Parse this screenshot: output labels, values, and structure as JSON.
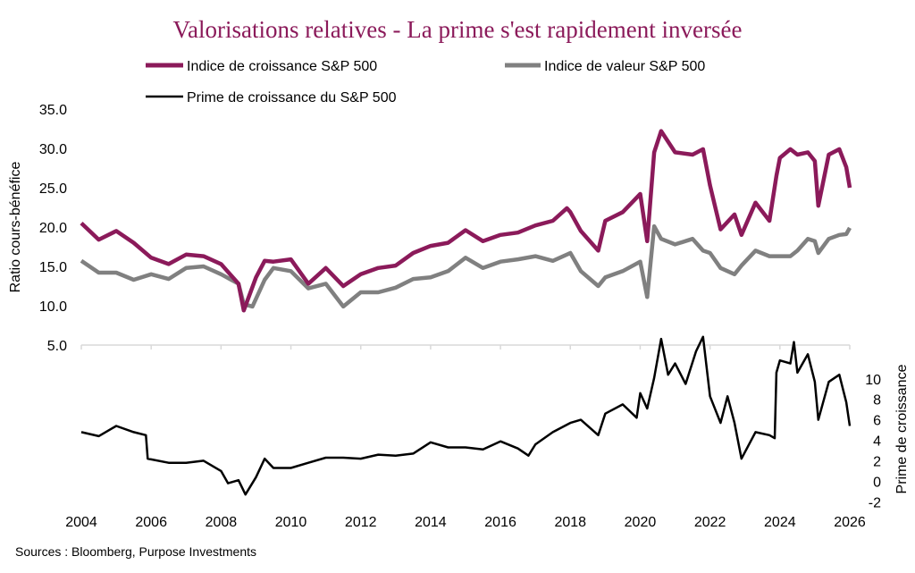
{
  "chart_data": {
    "type": "line",
    "title": "Valorisations relatives - La prime s'est rapidement inversée",
    "ylabel": "Ratio cours-bénéfice",
    "y2label": "Prime de croissance",
    "source": "Sources : Bloomberg, Purpose Investments",
    "xlim": [
      2004,
      2026
    ],
    "ylim": [
      5,
      35
    ],
    "y2lim": [
      -3.2,
      13.3
    ],
    "x_ticks": [
      "2004",
      "2006",
      "2008",
      "2010",
      "2012",
      "2014",
      "2016",
      "2018",
      "2020",
      "2022",
      "2024",
      "2026"
    ],
    "y_ticks": [
      "5.0",
      "10.0",
      "15.0",
      "20.0",
      "25.0",
      "30.0",
      "35.0"
    ],
    "y2_ticks": [
      "-2",
      "0",
      "2",
      "4",
      "6",
      "8",
      "10"
    ],
    "legend_placement": "top",
    "grid": false,
    "series": [
      {
        "name": "Indice de croissance S&P 500",
        "axis": "left",
        "color": "#8b1a5a",
        "points": [
          [
            2004,
            20.5
          ],
          [
            2004.5,
            18.4
          ],
          [
            2005,
            19.5
          ],
          [
            2005.5,
            18.0
          ],
          [
            2006,
            16.1
          ],
          [
            2006.5,
            15.3
          ],
          [
            2007,
            16.5
          ],
          [
            2007.5,
            16.3
          ],
          [
            2008,
            15.3
          ],
          [
            2008.5,
            12.8
          ],
          [
            2008.65,
            9.4
          ],
          [
            2009,
            13.6
          ],
          [
            2009.25,
            15.7
          ],
          [
            2009.5,
            15.6
          ],
          [
            2010,
            15.9
          ],
          [
            2010.5,
            12.8
          ],
          [
            2011,
            14.8
          ],
          [
            2011.5,
            12.5
          ],
          [
            2012,
            14.0
          ],
          [
            2012.5,
            14.8
          ],
          [
            2013,
            15.1
          ],
          [
            2013.5,
            16.7
          ],
          [
            2014,
            17.6
          ],
          [
            2014.5,
            18.0
          ],
          [
            2015,
            19.6
          ],
          [
            2015.5,
            18.2
          ],
          [
            2016,
            19.0
          ],
          [
            2016.5,
            19.3
          ],
          [
            2017,
            20.2
          ],
          [
            2017.5,
            20.8
          ],
          [
            2017.9,
            22.4
          ],
          [
            2018,
            21.9
          ],
          [
            2018.3,
            19.5
          ],
          [
            2018.8,
            17.0
          ],
          [
            2019,
            20.8
          ],
          [
            2019.5,
            21.9
          ],
          [
            2020,
            24.2
          ],
          [
            2020.2,
            18.2
          ],
          [
            2020.4,
            29.5
          ],
          [
            2020.6,
            32.2
          ],
          [
            2021,
            29.5
          ],
          [
            2021.5,
            29.2
          ],
          [
            2021.8,
            29.9
          ],
          [
            2022,
            25.3
          ],
          [
            2022.3,
            19.7
          ],
          [
            2022.7,
            21.6
          ],
          [
            2022.9,
            19.0
          ],
          [
            2023.3,
            23.1
          ],
          [
            2023.7,
            20.8
          ],
          [
            2023.9,
            26.5
          ],
          [
            2024,
            28.8
          ],
          [
            2024.3,
            29.9
          ],
          [
            2024.5,
            29.2
          ],
          [
            2024.8,
            29.5
          ],
          [
            2025,
            28.4
          ],
          [
            2025.1,
            22.7
          ],
          [
            2025.4,
            29.2
          ],
          [
            2025.7,
            29.9
          ],
          [
            2025.9,
            27.6
          ],
          [
            2026,
            25.0
          ]
        ]
      },
      {
        "name": "Indice de valeur S&P 500",
        "axis": "left",
        "color": "#808080",
        "points": [
          [
            2004,
            15.7
          ],
          [
            2004.5,
            14.2
          ],
          [
            2005,
            14.2
          ],
          [
            2005.5,
            13.3
          ],
          [
            2006,
            14.0
          ],
          [
            2006.5,
            13.4
          ],
          [
            2007,
            14.8
          ],
          [
            2007.5,
            15.0
          ],
          [
            2008,
            14.0
          ],
          [
            2008.5,
            12.8
          ],
          [
            2008.65,
            10.2
          ],
          [
            2008.9,
            9.9
          ],
          [
            2009.25,
            13.3
          ],
          [
            2009.5,
            14.8
          ],
          [
            2010,
            14.4
          ],
          [
            2010.5,
            12.2
          ],
          [
            2011,
            12.8
          ],
          [
            2011.5,
            9.9
          ],
          [
            2012,
            11.7
          ],
          [
            2012.5,
            11.7
          ],
          [
            2013,
            12.3
          ],
          [
            2013.5,
            13.4
          ],
          [
            2014,
            13.6
          ],
          [
            2014.5,
            14.4
          ],
          [
            2015,
            16.1
          ],
          [
            2015.5,
            14.8
          ],
          [
            2016,
            15.6
          ],
          [
            2016.5,
            15.9
          ],
          [
            2017,
            16.3
          ],
          [
            2017.5,
            15.7
          ],
          [
            2018,
            16.7
          ],
          [
            2018.3,
            14.4
          ],
          [
            2018.8,
            12.5
          ],
          [
            2019,
            13.6
          ],
          [
            2019.5,
            14.4
          ],
          [
            2020,
            15.6
          ],
          [
            2020.2,
            11.1
          ],
          [
            2020.4,
            20.1
          ],
          [
            2020.6,
            18.5
          ],
          [
            2021,
            17.8
          ],
          [
            2021.5,
            18.5
          ],
          [
            2021.8,
            17.0
          ],
          [
            2022,
            16.7
          ],
          [
            2022.3,
            14.8
          ],
          [
            2022.7,
            14.0
          ],
          [
            2022.9,
            15.1
          ],
          [
            2023.3,
            17.0
          ],
          [
            2023.7,
            16.3
          ],
          [
            2023.9,
            16.3
          ],
          [
            2024,
            16.3
          ],
          [
            2024.3,
            16.3
          ],
          [
            2024.5,
            17.0
          ],
          [
            2024.8,
            18.5
          ],
          [
            2025,
            18.2
          ],
          [
            2025.1,
            16.7
          ],
          [
            2025.4,
            18.5
          ],
          [
            2025.7,
            19.0
          ],
          [
            2025.9,
            19.1
          ],
          [
            2026,
            19.9
          ]
        ]
      },
      {
        "name": "Prime de croissance du S&P 500",
        "axis": "right",
        "color": "#000000",
        "points": [
          [
            2004,
            4.8
          ],
          [
            2004.5,
            4.4
          ],
          [
            2005,
            5.4
          ],
          [
            2005.5,
            4.8
          ],
          [
            2005.85,
            4.5
          ],
          [
            2005.9,
            2.2
          ],
          [
            2006.5,
            1.8
          ],
          [
            2007,
            1.8
          ],
          [
            2007.5,
            2.0
          ],
          [
            2008,
            1.0
          ],
          [
            2008.2,
            -0.2
          ],
          [
            2008.5,
            0.1
          ],
          [
            2008.7,
            -1.3
          ],
          [
            2009,
            0.4
          ],
          [
            2009.25,
            2.2
          ],
          [
            2009.5,
            1.3
          ],
          [
            2010,
            1.3
          ],
          [
            2010.5,
            1.8
          ],
          [
            2011,
            2.3
          ],
          [
            2011.5,
            2.3
          ],
          [
            2012,
            2.2
          ],
          [
            2012.5,
            2.6
          ],
          [
            2013,
            2.5
          ],
          [
            2013.5,
            2.7
          ],
          [
            2014,
            3.8
          ],
          [
            2014.5,
            3.3
          ],
          [
            2015,
            3.3
          ],
          [
            2015.5,
            3.1
          ],
          [
            2016,
            3.9
          ],
          [
            2016.5,
            3.2
          ],
          [
            2016.8,
            2.5
          ],
          [
            2017,
            3.6
          ],
          [
            2017.5,
            4.8
          ],
          [
            2018,
            5.7
          ],
          [
            2018.3,
            6.0
          ],
          [
            2018.8,
            4.5
          ],
          [
            2019,
            6.6
          ],
          [
            2019.5,
            7.5
          ],
          [
            2019.9,
            6.2
          ],
          [
            2020,
            8.6
          ],
          [
            2020.2,
            7.1
          ],
          [
            2020.4,
            10.1
          ],
          [
            2020.6,
            13.9
          ],
          [
            2020.8,
            10.4
          ],
          [
            2021,
            11.5
          ],
          [
            2021.3,
            9.5
          ],
          [
            2021.6,
            12.7
          ],
          [
            2021.8,
            14.1
          ],
          [
            2022,
            8.3
          ],
          [
            2022.3,
            5.7
          ],
          [
            2022.5,
            8.3
          ],
          [
            2022.7,
            5.7
          ],
          [
            2022.9,
            2.2
          ],
          [
            2023.3,
            4.8
          ],
          [
            2023.7,
            4.5
          ],
          [
            2023.85,
            4.2
          ],
          [
            2023.9,
            10.6
          ],
          [
            2024,
            11.8
          ],
          [
            2024.3,
            11.5
          ],
          [
            2024.4,
            13.6
          ],
          [
            2024.5,
            10.6
          ],
          [
            2024.8,
            12.4
          ],
          [
            2025,
            9.7
          ],
          [
            2025.1,
            6.0
          ],
          [
            2025.4,
            9.7
          ],
          [
            2025.7,
            10.4
          ],
          [
            2025.9,
            7.7
          ],
          [
            2026,
            5.4
          ]
        ]
      }
    ]
  }
}
